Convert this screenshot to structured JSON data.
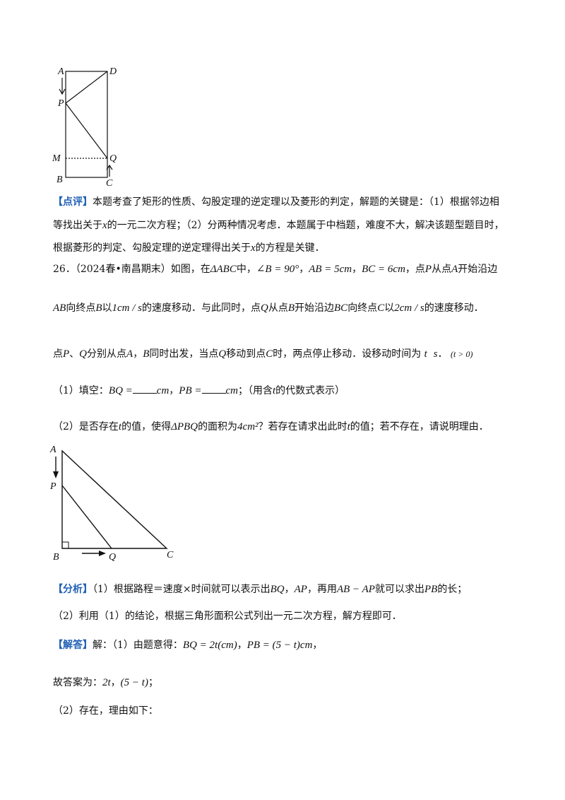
{
  "figure1": {
    "labels": {
      "A": "A",
      "D": "D",
      "P": "P",
      "M": "M",
      "Q": "Q",
      "B": "B",
      "C": "C"
    }
  },
  "comment": {
    "tag": "【点评】",
    "line1": "本题考查了矩形的性质、勾股定理的逆定理以及菱形的判定，解题的关键是：（1）根据邻边相",
    "line2a": "等找出关于",
    "line2b": "x",
    "line2c": "的一元二次方程；（2）分两种情况考虑．本题属于中档题，难度不大，解决该题型题目时，",
    "line3a": "根据菱形的判定、勾股定理的逆定理得出关于",
    "line3b": "x",
    "line3c": "的方程是关键．"
  },
  "problem": {
    "p1a": "26．（2024春•南昌期末）如图，在",
    "p1b": "ΔABC",
    "p1c": "中，",
    "p1d": "∠B = 90°",
    "p1e": "，",
    "p1f": "AB = 5cm",
    "p1g": "，",
    "p1h": "BC = 6cm",
    "p1i": "，点",
    "p1j": "P",
    "p1k": "从点",
    "p1l": "A",
    "p1m": "开始沿边",
    "p2a": "AB",
    "p2b": "向终点",
    "p2c": "B",
    "p2d": "以",
    "p2e": "1cm / s",
    "p2f": "的速度移动．与此同时，点",
    "p2g": "Q",
    "p2h": "从点",
    "p2i": "B",
    "p2j": "开始沿边",
    "p2k": "BC",
    "p2l": "向终点",
    "p2m": "C",
    "p2n": "以",
    "p2o": "2cm / s",
    "p2p": "的速度移动．",
    "p3a": "点",
    "p3b": "P",
    "p3c": "、",
    "p3d": "Q",
    "p3e": "分别从点",
    "p3f": "A",
    "p3g": "，",
    "p3h": "B",
    "p3i": "同时出发，当点",
    "p3j": "Q",
    "p3k": "移动到点",
    "p3l": "C",
    "p3m": "时，两点停止移动．设移动时间为",
    "p3n": "t",
    "p3o": "s",
    "p3p": "．",
    "p3q": "(t > 0)",
    "q1a": "（1）填空：",
    "q1b": "BQ =",
    "q1c": "cm",
    "q1d": "，",
    "q1e": "PB =",
    "q1f": "cm",
    "q1g": "；（用含",
    "q1h": "t",
    "q1i": "的代数式表示）",
    "q2a": "（2）是否存在",
    "q2b": "t",
    "q2c": "的值，使得",
    "q2d": "ΔPBQ",
    "q2e": "的面积为",
    "q2f": "4cm²",
    "q2g": "？若存在请求出此时",
    "q2h": "t",
    "q2i": "的值；若不存在，请说明理由．"
  },
  "figure2": {
    "labels": {
      "A": "A",
      "P": "P",
      "B": "B",
      "Q": "Q",
      "C": "C"
    }
  },
  "analysis": {
    "tag": "【分析】",
    "a1a": "（1）根据路程＝速度×时间就可以表示出",
    "a1b": "BQ",
    "a1c": "，",
    "a1d": "AP",
    "a1e": "，再用",
    "a1f": "AB − AP",
    "a1g": "就可以求出",
    "a1h": "PB",
    "a1i": "的长；",
    "a2": "（2）利用（1）的结论，根据三角形面积公式列出一元二次方程，解方程即可．"
  },
  "solution": {
    "tag": "【解答】",
    "s1a": "解：（1）由题意得：",
    "s1b": "BQ = 2t(cm)",
    "s1c": "，",
    "s1d": "PB = (5 − t)cm",
    "s1e": "，",
    "s2a": "故答案为：",
    "s2b": "2t",
    "s2c": "，",
    "s2d": "(5 − t)",
    "s2e": "；",
    "s3": "（2）存在，理由如下："
  }
}
